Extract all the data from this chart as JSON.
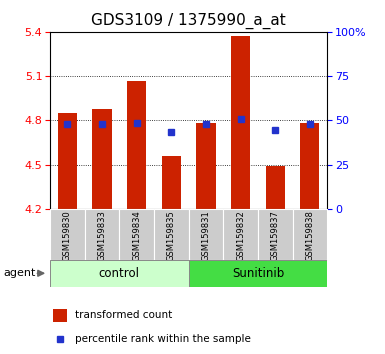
{
  "title": "GDS3109 / 1375990_a_at",
  "samples": [
    "GSM159830",
    "GSM159833",
    "GSM159834",
    "GSM159835",
    "GSM159831",
    "GSM159832",
    "GSM159837",
    "GSM159838"
  ],
  "groups": [
    "control",
    "control",
    "control",
    "control",
    "Sunitinib",
    "Sunitinib",
    "Sunitinib",
    "Sunitinib"
  ],
  "bar_values": [
    4.85,
    4.88,
    5.07,
    4.56,
    4.78,
    5.37,
    4.49,
    4.78
  ],
  "bar_base": 4.2,
  "percentile_values": [
    4.775,
    4.775,
    4.785,
    4.72,
    4.775,
    4.81,
    4.735,
    4.775
  ],
  "ylim": [
    4.2,
    5.4
  ],
  "yticks_left": [
    4.2,
    4.5,
    4.8,
    5.1,
    5.4
  ],
  "yticks_right": [
    0,
    25,
    50,
    75,
    100
  ],
  "bar_color": "#cc2200",
  "percentile_color": "#2233cc",
  "control_bg": "#ccffcc",
  "sunitinib_bg": "#44dd44",
  "sample_bg": "#cccccc",
  "group_label_control": "control",
  "group_label_sunitinib": "Sunitinib",
  "legend_bar_label": "transformed count",
  "legend_pct_label": "percentile rank within the sample",
  "agent_label": "agent",
  "title_fontsize": 11,
  "tick_fontsize": 8,
  "label_fontsize": 6,
  "group_fontsize": 8.5
}
